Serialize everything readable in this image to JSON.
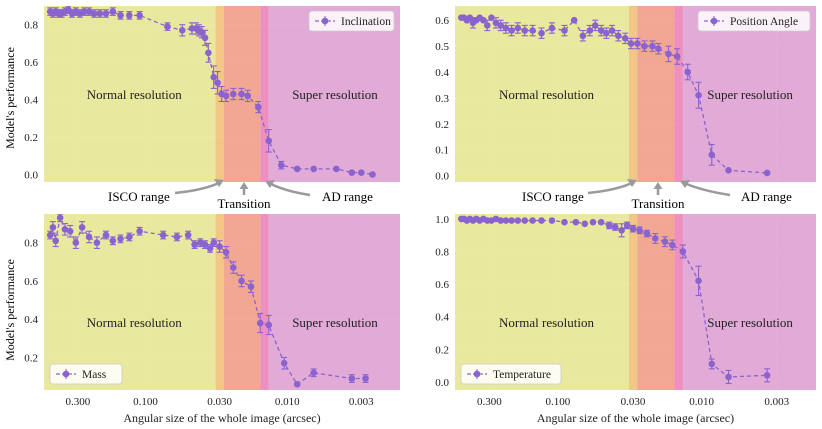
{
  "colors": {
    "panel_bg": "#e8e8f0",
    "grid": "#ffffff",
    "normal_zone": "#e8e88f",
    "isco_zone": "#f3c27a",
    "transition_zone": "#f3a08a",
    "ad_zone": "#ee86b9",
    "super_zone": "#df9fd2",
    "series": "#8a63cf",
    "annotation": "#9a9a9a",
    "text": "#222222"
  },
  "texts": {
    "ylabel": "Model's performance",
    "xlabel": "Angular size of the whole image (arcsec)",
    "normal_resolution": "Normal resolution",
    "super_resolution": "Super resolution",
    "isco_range": "ISCO range",
    "transition": "Transition",
    "ad_range": "AD range"
  },
  "chart_data": [
    {
      "type": "line",
      "title": "",
      "legend": "Inclination",
      "legend_loc": "top-right",
      "xlabel": "",
      "ylabel": "Model's performance",
      "xscale": "log-reversed",
      "xlim": [
        0.52,
        0.0016
      ],
      "ylim": [
        -0.04,
        0.9
      ],
      "yticks": [
        "0.0",
        "0.2",
        "0.4",
        "0.6",
        "0.8"
      ],
      "xtick_labels": [
        "0.300",
        "0.100",
        "0.030",
        "0.010",
        "0.003"
      ],
      "regions": {
        "normal": [
          0.52,
          0.032
        ],
        "isco": [
          0.032,
          0.028
        ],
        "transition": [
          0.028,
          0.0155
        ],
        "ad": [
          0.0155,
          0.0135
        ],
        "super": [
          0.0135,
          0.0016
        ]
      },
      "x": [
        0.47,
        0.45,
        0.43,
        0.41,
        0.39,
        0.37,
        0.35,
        0.33,
        0.31,
        0.29,
        0.27,
        0.25,
        0.23,
        0.21,
        0.19,
        0.17,
        0.15,
        0.13,
        0.11,
        0.07,
        0.055,
        0.047,
        0.044,
        0.042,
        0.04,
        0.038,
        0.036,
        0.033,
        0.031,
        0.029,
        0.027,
        0.024,
        0.021,
        0.019,
        0.016,
        0.0135,
        0.011,
        0.0085,
        0.0065,
        0.0045,
        0.0035,
        0.003,
        0.0025
      ],
      "y": [
        0.87,
        0.86,
        0.87,
        0.86,
        0.86,
        0.87,
        0.88,
        0.86,
        0.87,
        0.86,
        0.87,
        0.87,
        0.86,
        0.86,
        0.86,
        0.87,
        0.85,
        0.85,
        0.85,
        0.79,
        0.77,
        0.78,
        0.78,
        0.77,
        0.76,
        0.73,
        0.65,
        0.52,
        0.49,
        0.43,
        0.42,
        0.43,
        0.43,
        0.42,
        0.36,
        0.18,
        0.05,
        0.03,
        0.03,
        0.03,
        0.01,
        0.01,
        0.0
      ],
      "err": [
        0.02,
        0.02,
        0.02,
        0.02,
        0.02,
        0.02,
        0.02,
        0.02,
        0.02,
        0.02,
        0.02,
        0.02,
        0.02,
        0.02,
        0.02,
        0.02,
        0.02,
        0.02,
        0.02,
        0.02,
        0.03,
        0.03,
        0.03,
        0.03,
        0.03,
        0.04,
        0.05,
        0.06,
        0.06,
        0.04,
        0.03,
        0.03,
        0.03,
        0.03,
        0.03,
        0.06,
        0.02,
        0.01,
        0.01,
        0.01,
        0.01,
        0.01,
        0.01
      ]
    },
    {
      "type": "line",
      "title": "",
      "legend": "Position Angle",
      "legend_loc": "top-right",
      "xlabel": "",
      "ylabel": "",
      "xscale": "log-reversed",
      "xlim": [
        0.52,
        0.0016
      ],
      "ylim": [
        -0.025,
        0.655
      ],
      "yticks": [
        "0.0",
        "0.1",
        "0.2",
        "0.3",
        "0.4",
        "0.5",
        "0.6"
      ],
      "xtick_labels": [],
      "regions": {
        "normal": [
          0.52,
          0.032
        ],
        "isco": [
          0.032,
          0.028
        ],
        "transition": [
          0.028,
          0.0155
        ],
        "ad": [
          0.0155,
          0.0135
        ],
        "super": [
          0.0135,
          0.0016
        ]
      },
      "x": [
        0.47,
        0.45,
        0.43,
        0.41,
        0.39,
        0.37,
        0.35,
        0.33,
        0.31,
        0.29,
        0.27,
        0.25,
        0.23,
        0.21,
        0.19,
        0.17,
        0.15,
        0.13,
        0.11,
        0.09,
        0.077,
        0.067,
        0.06,
        0.055,
        0.05,
        0.046,
        0.042,
        0.038,
        0.034,
        0.031,
        0.028,
        0.025,
        0.022,
        0.02,
        0.017,
        0.0148,
        0.0125,
        0.0105,
        0.0085,
        0.0065,
        0.0035
      ],
      "y": [
        0.61,
        0.61,
        0.6,
        0.61,
        0.59,
        0.6,
        0.61,
        0.6,
        0.58,
        0.61,
        0.59,
        0.58,
        0.57,
        0.56,
        0.57,
        0.56,
        0.56,
        0.55,
        0.57,
        0.56,
        0.6,
        0.54,
        0.56,
        0.58,
        0.56,
        0.55,
        0.56,
        0.54,
        0.53,
        0.51,
        0.51,
        0.5,
        0.5,
        0.49,
        0.47,
        0.46,
        0.4,
        0.31,
        0.08,
        0.02,
        0.01
      ],
      "err": [
        0.01,
        0.01,
        0.01,
        0.01,
        0.02,
        0.01,
        0.01,
        0.01,
        0.02,
        0.01,
        0.02,
        0.02,
        0.02,
        0.02,
        0.02,
        0.02,
        0.02,
        0.02,
        0.02,
        0.02,
        0.01,
        0.02,
        0.02,
        0.02,
        0.02,
        0.02,
        0.02,
        0.02,
        0.02,
        0.02,
        0.02,
        0.02,
        0.02,
        0.02,
        0.03,
        0.03,
        0.03,
        0.05,
        0.04,
        0.01,
        0.01
      ]
    },
    {
      "type": "line",
      "title": "",
      "legend": "Mass",
      "legend_loc": "bottom-left",
      "xlabel": "Angular size of the whole image (arcsec)",
      "ylabel": "Model's performance",
      "xscale": "log-reversed",
      "xlim": [
        0.52,
        0.0016
      ],
      "ylim": [
        0.03,
        0.95
      ],
      "yticks": [
        "0.2",
        "0.4",
        "0.6",
        "0.8"
      ],
      "xtick_labels": [
        "0.300",
        "0.100",
        "0.030",
        "0.010",
        "0.003"
      ],
      "regions": {
        "normal": [
          0.52,
          0.032
        ],
        "isco": [
          0.032,
          0.028
        ],
        "transition": [
          0.028,
          0.0155
        ],
        "ad": [
          0.0155,
          0.0135
        ],
        "super": [
          0.0135,
          0.0016
        ]
      },
      "x": [
        0.47,
        0.45,
        0.43,
        0.4,
        0.37,
        0.34,
        0.31,
        0.28,
        0.25,
        0.22,
        0.19,
        0.17,
        0.15,
        0.13,
        0.11,
        0.075,
        0.06,
        0.05,
        0.045,
        0.041,
        0.038,
        0.035,
        0.033,
        0.03,
        0.027,
        0.024,
        0.021,
        0.018,
        0.0155,
        0.0135,
        0.0105,
        0.0085,
        0.0065,
        0.0035,
        0.0028
      ],
      "y": [
        0.84,
        0.88,
        0.81,
        0.93,
        0.87,
        0.86,
        0.8,
        0.88,
        0.83,
        0.8,
        0.84,
        0.81,
        0.82,
        0.83,
        0.86,
        0.84,
        0.83,
        0.84,
        0.79,
        0.8,
        0.79,
        0.77,
        0.8,
        0.78,
        0.75,
        0.67,
        0.6,
        0.57,
        0.38,
        0.37,
        0.17,
        0.06,
        0.12,
        0.09,
        0.09
      ],
      "err": [
        0.02,
        0.03,
        0.03,
        0.02,
        0.03,
        0.03,
        0.03,
        0.03,
        0.03,
        0.03,
        0.02,
        0.02,
        0.02,
        0.02,
        0.02,
        0.02,
        0.02,
        0.02,
        0.02,
        0.02,
        0.02,
        0.02,
        0.02,
        0.03,
        0.03,
        0.03,
        0.03,
        0.03,
        0.05,
        0.05,
        0.03,
        0.01,
        0.02,
        0.02,
        0.02
      ]
    },
    {
      "type": "line",
      "title": "",
      "legend": "Temperature",
      "legend_loc": "bottom-left",
      "xlabel": "Angular size of the whole image (arcsec)",
      "ylabel": "",
      "xscale": "log-reversed",
      "xlim": [
        0.52,
        0.0016
      ],
      "ylim": [
        -0.05,
        1.03
      ],
      "yticks": [
        "0.0",
        "0.2",
        "0.4",
        "0.6",
        "0.8",
        "1.0"
      ],
      "xtick_labels": [
        "0.300",
        "0.100",
        "0.030",
        "0.010",
        "0.003"
      ],
      "regions": {
        "normal": [
          0.52,
          0.032
        ],
        "isco": [
          0.032,
          0.028
        ],
        "transition": [
          0.028,
          0.0155
        ],
        "ad": [
          0.0155,
          0.0135
        ],
        "super": [
          0.0135,
          0.0016
        ]
      },
      "x": [
        0.47,
        0.45,
        0.43,
        0.41,
        0.39,
        0.37,
        0.35,
        0.33,
        0.31,
        0.29,
        0.27,
        0.25,
        0.23,
        0.21,
        0.19,
        0.17,
        0.15,
        0.13,
        0.11,
        0.09,
        0.075,
        0.065,
        0.057,
        0.05,
        0.044,
        0.04,
        0.036,
        0.033,
        0.03,
        0.027,
        0.024,
        0.021,
        0.018,
        0.016,
        0.0135,
        0.0105,
        0.0085,
        0.0065,
        0.0035
      ],
      "y": [
        1.0,
        1.0,
        0.99,
        1.0,
        0.99,
        1.0,
        0.99,
        1.0,
        0.99,
        0.99,
        1.0,
        0.99,
        0.99,
        0.99,
        0.99,
        0.99,
        0.99,
        0.99,
        0.99,
        0.98,
        0.98,
        0.97,
        0.98,
        0.98,
        0.96,
        0.95,
        0.93,
        0.96,
        0.94,
        0.93,
        0.91,
        0.88,
        0.86,
        0.84,
        0.8,
        0.62,
        0.11,
        0.03,
        0.04
      ],
      "err": [
        0.01,
        0.01,
        0.01,
        0.01,
        0.01,
        0.01,
        0.01,
        0.01,
        0.01,
        0.01,
        0.01,
        0.01,
        0.01,
        0.01,
        0.01,
        0.01,
        0.01,
        0.01,
        0.01,
        0.01,
        0.01,
        0.01,
        0.01,
        0.01,
        0.02,
        0.02,
        0.04,
        0.02,
        0.02,
        0.02,
        0.02,
        0.03,
        0.03,
        0.03,
        0.04,
        0.09,
        0.03,
        0.04,
        0.04
      ]
    }
  ]
}
